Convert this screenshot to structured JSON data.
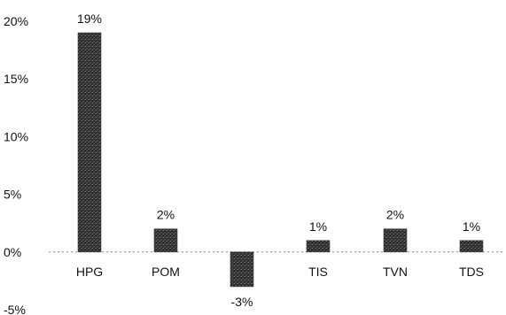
{
  "chart_data": {
    "type": "bar",
    "categories": [
      "HPG",
      "POM",
      "",
      "TIS",
      "TVN",
      "TDS"
    ],
    "values": [
      19,
      2,
      -3,
      1,
      2,
      1
    ],
    "data_labels": [
      "19%",
      "2%",
      "-3%",
      "1%",
      "2%",
      "1%"
    ],
    "ylim": [
      -5,
      20
    ],
    "yticks": [
      20,
      15,
      10,
      5,
      0,
      -5
    ],
    "ytick_labels": [
      "20%",
      "15%",
      "10%",
      "5%",
      "0%",
      "-5%"
    ],
    "bar_color": "#3a3a3a",
    "grid": false,
    "legend": "none"
  }
}
